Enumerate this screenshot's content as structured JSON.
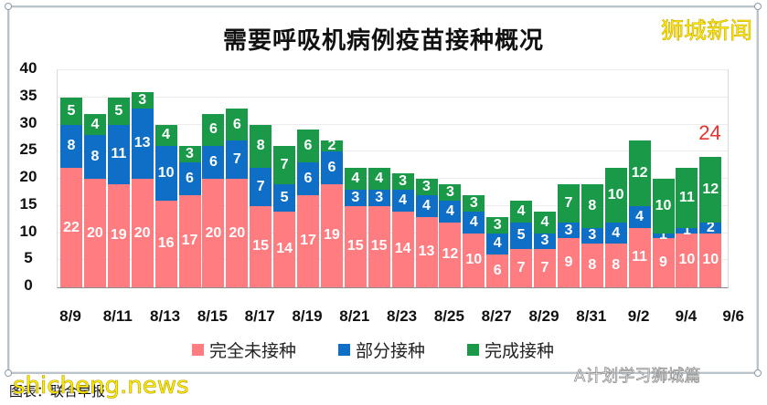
{
  "title": "需要呼吸机病例疫苗接种概况",
  "brand": "狮城新闻",
  "callout": {
    "text": "24",
    "color": "#e8302f"
  },
  "legend": [
    {
      "label": "完全未接种",
      "color": "#ff7c80"
    },
    {
      "label": "部分接种",
      "color": "#0f6fc6"
    },
    {
      "label": "完成接种",
      "color": "#1a9a48"
    }
  ],
  "source": "图表：联合早报",
  "watermark_site": "shicheng.news",
  "watermark_account": "A计划学习狮城篇",
  "y_ticks": [
    "0",
    "5",
    "10",
    "15",
    "20",
    "25",
    "30",
    "35",
    "40"
  ],
  "x_ticks": [
    "8/9",
    "8/11",
    "8/13",
    "8/15",
    "8/17",
    "8/19",
    "8/21",
    "8/23",
    "8/25",
    "8/27",
    "8/29",
    "8/31",
    "9/2",
    "9/4",
    "9/6"
  ],
  "chart_data": {
    "type": "bar",
    "stacked": true,
    "title": "需要呼吸机病例疫苗接种概况",
    "xlabel": "",
    "ylabel": "",
    "ylim": [
      0,
      40
    ],
    "grid": true,
    "legend_position": "bottom",
    "categories": [
      "8/9",
      "8/10",
      "8/11",
      "8/12",
      "8/13",
      "8/14",
      "8/15",
      "8/16",
      "8/17",
      "8/18",
      "8/19",
      "8/20",
      "8/21",
      "8/22",
      "8/23",
      "8/24",
      "8/25",
      "8/26",
      "8/27",
      "8/28",
      "8/29",
      "8/30",
      "8/31",
      "9/1",
      "9/2",
      "9/3",
      "9/4",
      "9/5"
    ],
    "series": [
      {
        "name": "完全未接种",
        "color": "#ff7c80",
        "values": [
          22,
          20,
          19,
          20,
          16,
          17,
          20,
          20,
          15,
          14,
          17,
          19,
          15,
          15,
          14,
          13,
          12,
          10,
          6,
          7,
          7,
          9,
          8,
          8,
          11,
          9,
          10,
          10
        ]
      },
      {
        "name": "部分接种",
        "color": "#0f6fc6",
        "values": [
          8,
          8,
          11,
          13,
          10,
          6,
          6,
          7,
          7,
          5,
          6,
          6,
          3,
          3,
          4,
          4,
          4,
          4,
          4,
          5,
          3,
          3,
          3,
          4,
          4,
          1,
          1,
          2
        ]
      },
      {
        "name": "完成接种",
        "color": "#1a9a48",
        "values": [
          5,
          4,
          5,
          3,
          4,
          3,
          6,
          6,
          8,
          7,
          6,
          2,
          4,
          4,
          3,
          3,
          3,
          3,
          3,
          4,
          4,
          7,
          8,
          10,
          12,
          10,
          11,
          12
        ]
      }
    ],
    "annotations": [
      {
        "category": "9/5",
        "text": "24"
      }
    ]
  }
}
